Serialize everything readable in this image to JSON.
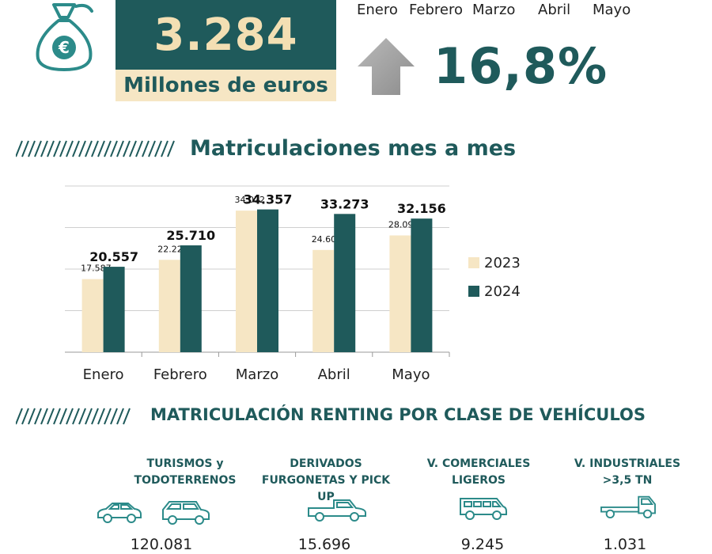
{
  "header": {
    "big_number": "3.284",
    "big_unit": "Millones de euros",
    "months": [
      "Enero",
      "Febrero",
      "Marzo",
      "Abril",
      "Mayo"
    ],
    "growth_pct": "16,8%",
    "icons": [
      "money-bag-icon",
      "euro-icon",
      "up-arrow-icon"
    ]
  },
  "section1": {
    "title": "Matriculaciones mes a mes"
  },
  "section2": {
    "title": "MATRICULACIÓN RENTING POR CLASE DE VEHÍCULOS"
  },
  "chart_data": {
    "type": "bar",
    "categories": [
      "Enero",
      "Febrero",
      "Marzo",
      "Abril",
      "Mayo"
    ],
    "series": [
      {
        "name": "2023",
        "values": [
          17587,
          22229,
          34072,
          24605,
          28099
        ],
        "labels": [
          "17.587",
          "22.229",
          "34.072",
          "24.605",
          "28.099"
        ],
        "color": "#f6e6c4"
      },
      {
        "name": "2024",
        "values": [
          20557,
          25710,
          34357,
          33273,
          32156
        ],
        "labels": [
          "20.557",
          "25.710",
          "34.357",
          "33.273",
          "32.156"
        ],
        "color": "#1f5a5b"
      }
    ],
    "ylim": [
      0,
      40000
    ],
    "grid": true,
    "legend": "right",
    "title": "",
    "xlabel": "",
    "ylabel": ""
  },
  "vehicles": [
    {
      "label1": "TURISMOS y",
      "label2": "TODOTERRENOS",
      "value": "120.081",
      "icon": "car-and-suv-icon"
    },
    {
      "label1": "DERIVADOS",
      "label2": "FURGONETAS Y PICK UP",
      "value": "15.696",
      "icon": "pickup-icon"
    },
    {
      "label1": "V. COMERCIALES",
      "label2": "LIGEROS",
      "value": "9.245",
      "icon": "van-icon"
    },
    {
      "label1": "V. INDUSTRIALES",
      "label2": ">3,5 TN",
      "value": "1.031",
      "icon": "truck-icon"
    }
  ]
}
